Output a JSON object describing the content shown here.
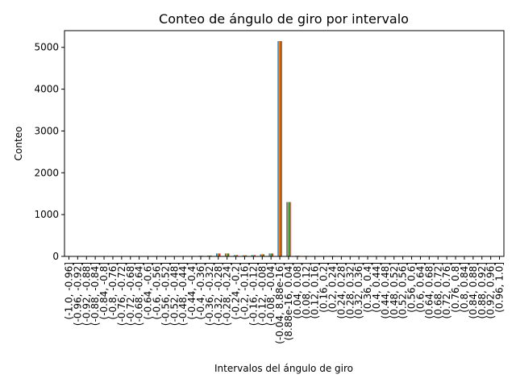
{
  "chart_data": {
    "type": "bar",
    "title": "Conteo de ángulo de giro por intervalo",
    "xlabel": "Intervalos del ángulo de giro",
    "ylabel": "Conteo",
    "ylim": [
      0,
      5400
    ],
    "yticks": [
      0,
      1000,
      2000,
      3000,
      4000,
      5000
    ],
    "grid": false,
    "legend": "none",
    "bar_colors": [
      "#1f77b4",
      "#ff7f0e",
      "#2ca02c",
      "#d62728"
    ],
    "categories": [
      "(-1.0, -0.96]",
      "(-0.96, -0.92]",
      "(-0.92, -0.88]",
      "(-0.88, -0.84]",
      "(-0.84, -0.8]",
      "(-0.8, -0.76]",
      "(-0.76, -0.72]",
      "(-0.72, -0.68]",
      "(-0.68, -0.64]",
      "(-0.64, -0.6]",
      "(-0.6, -0.56]",
      "(-0.56, -0.52]",
      "(-0.52, -0.48]",
      "(-0.48, -0.44]",
      "(-0.44, -0.4]",
      "(-0.4, -0.36]",
      "(-0.36, -0.32]",
      "(-0.32, -0.28]",
      "(-0.28, -0.24]",
      "(-0.24, -0.2]",
      "(-0.2, -0.16]",
      "(-0.16, -0.12]",
      "(-0.12, -0.08]",
      "(-0.08, -0.04]",
      "(-0.04, 8.88e-16]",
      "(8.88e-16, 0.04]",
      "(0.04, 0.08]",
      "(0.08, 0.12]",
      "(0.12, 0.16]",
      "(0.16, 0.2]",
      "(0.2, 0.24]",
      "(0.24, 0.28]",
      "(0.28, 0.32]",
      "(0.32, 0.36]",
      "(0.36, 0.4]",
      "(0.4, 0.44]",
      "(0.44, 0.48]",
      "(0.48, 0.52]",
      "(0.52, 0.56]",
      "(0.56, 0.6]",
      "(0.6, 0.64]",
      "(0.64, 0.68]",
      "(0.68, 0.72]",
      "(0.72, 0.76]",
      "(0.76, 0.8]",
      "(0.8, 0.84]",
      "(0.84, 0.88]",
      "(0.88, 0.92]",
      "(0.92, 0.96]",
      "(0.96, 1.0]"
    ],
    "values": [
      1,
      1,
      1,
      1,
      1,
      2,
      2,
      3,
      3,
      4,
      3,
      5,
      6,
      8,
      10,
      15,
      20,
      70,
      70,
      30,
      25,
      30,
      50,
      70,
      5150,
      1300,
      15,
      12,
      10,
      10,
      12,
      10,
      6,
      5,
      5,
      4,
      4,
      6,
      3,
      3,
      2,
      2,
      2,
      1,
      1,
      1,
      1,
      1,
      1,
      1
    ]
  }
}
